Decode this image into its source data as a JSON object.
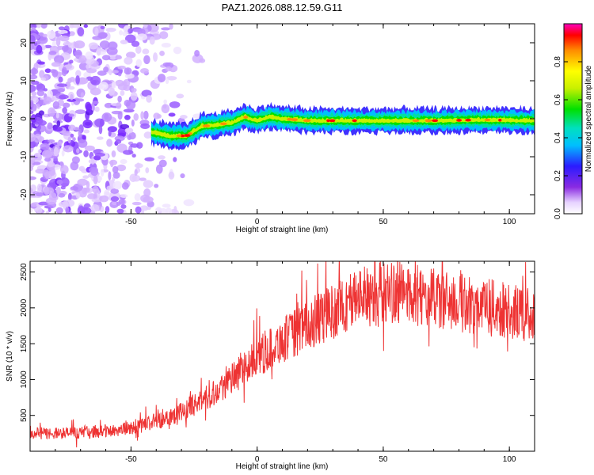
{
  "title": "PAZ1.2026.088.12.59.G11",
  "chart_data": [
    {
      "type": "heatmap",
      "xlabel": "Height of straight line (km)",
      "ylabel": "Frequency (Hz)",
      "xlim": [
        -90,
        110
      ],
      "ylim": [
        -25,
        25
      ],
      "xticks": [
        -50,
        0,
        50,
        100
      ],
      "yticks": [
        -20,
        -10,
        0,
        10,
        20
      ],
      "colorbar": {
        "label": "Normalized spectral amplitude",
        "range": [
          0.0,
          1.0
        ],
        "ticks": [
          0.0,
          0.2,
          0.4,
          0.6,
          0.8
        ],
        "tick_labels": [
          "0.0",
          "0.2",
          "0.4",
          "0.6",
          "0.8"
        ]
      },
      "ridge": {
        "x": [
          -42,
          -35,
          -28,
          -22,
          -15,
          -10,
          -5,
          0,
          5,
          10,
          20,
          30,
          50,
          70,
          90,
          110
        ],
        "frequency": [
          -3.5,
          -4.5,
          -4.5,
          -2.0,
          -1.5,
          -1.0,
          0.5,
          -0.5,
          0.5,
          0.0,
          -0.5,
          -0.5,
          -0.5,
          -0.5,
          -0.3,
          -0.5
        ]
      },
      "noise_region": {
        "x_from": -90,
        "x_to": -20,
        "frequency_range": [
          -25,
          25
        ]
      }
    },
    {
      "type": "line",
      "xlabel": "Height of straight line (km)",
      "ylabel": "SNR (10 * v/v)",
      "xlim": [
        -90,
        110
      ],
      "ylim": [
        0,
        2650
      ],
      "xticks": [
        -50,
        0,
        50,
        100
      ],
      "yticks": [
        500,
        1000,
        1500,
        2000,
        2500
      ],
      "color": "#ee3333",
      "series": [
        {
          "name": "SNR",
          "x": [
            -90,
            -80,
            -70,
            -60,
            -50,
            -40,
            -30,
            -20,
            -10,
            0,
            10,
            20,
            30,
            40,
            50,
            60,
            70,
            80,
            90,
            100,
            110
          ],
          "values": [
            250,
            250,
            260,
            280,
            320,
            420,
            550,
            750,
            1000,
            1300,
            1550,
            1750,
            1950,
            2150,
            2230,
            2200,
            2130,
            2070,
            2020,
            1950,
            1900
          ]
        }
      ]
    }
  ]
}
